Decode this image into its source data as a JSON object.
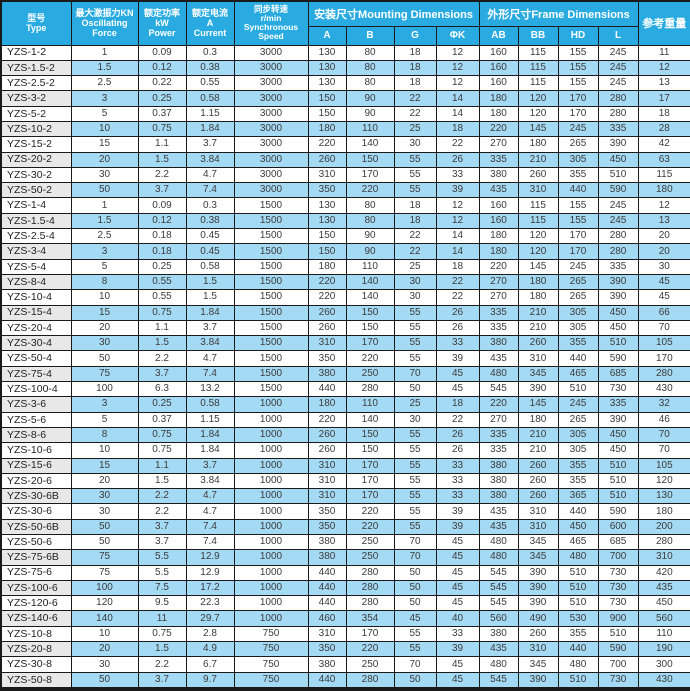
{
  "colors": {
    "header_bg": "#29ABE2",
    "row_stripe": "#A5DAF4",
    "model_stripe": "#E8E8E8",
    "border": "#1A1A1A",
    "header_text": "#FFFFFF",
    "cell_text": "#3C3C3C"
  },
  "table": {
    "header": {
      "type": "型号\nType",
      "force": "最大激振力KN\nOscillating\nForce",
      "power": "额定功率\nkW\nPower",
      "current": "额定电流\nA\nCurrent",
      "speed": "同步转速\nr/min\nSynchronous\nSpeed",
      "mounting_group": "安装尺寸Mounting Dimensions",
      "frame_group": "外形尺寸Frame Dimensions",
      "weight": "参考重量",
      "sub_columns": [
        "A",
        "B",
        "G",
        "ΦK",
        "AB",
        "BB",
        "HD",
        "L"
      ]
    },
    "col_keys": [
      "model",
      "force",
      "power",
      "current",
      "speed",
      "a",
      "b",
      "g",
      "phik",
      "ab",
      "bb",
      "hd",
      "l",
      "weight"
    ],
    "rows": [
      [
        "YZS-1-2",
        "1",
        "0.09",
        "0.3",
        "3000",
        "130",
        "80",
        "18",
        "12",
        "160",
        "115",
        "155",
        "245",
        "11"
      ],
      [
        "YZS-1.5-2",
        "1.5",
        "0.12",
        "0.38",
        "3000",
        "130",
        "80",
        "18",
        "12",
        "160",
        "115",
        "155",
        "245",
        "12"
      ],
      [
        "YZS-2.5-2",
        "2.5",
        "0.22",
        "0.55",
        "3000",
        "130",
        "80",
        "18",
        "12",
        "160",
        "115",
        "155",
        "245",
        "13"
      ],
      [
        "YZS-3-2",
        "3",
        "0.25",
        "0.58",
        "3000",
        "150",
        "90",
        "22",
        "14",
        "180",
        "120",
        "170",
        "280",
        "17"
      ],
      [
        "YZS-5-2",
        "5",
        "0.37",
        "1.15",
        "3000",
        "150",
        "90",
        "22",
        "14",
        "180",
        "120",
        "170",
        "280",
        "18"
      ],
      [
        "YZS-10-2",
        "10",
        "0.75",
        "1.84",
        "3000",
        "180",
        "110",
        "25",
        "18",
        "220",
        "145",
        "245",
        "335",
        "28"
      ],
      [
        "YZS-15-2",
        "15",
        "1.1",
        "3.7",
        "3000",
        "220",
        "140",
        "30",
        "22",
        "270",
        "180",
        "265",
        "390",
        "42"
      ],
      [
        "YZS-20-2",
        "20",
        "1.5",
        "3.84",
        "3000",
        "260",
        "150",
        "55",
        "26",
        "335",
        "210",
        "305",
        "450",
        "63"
      ],
      [
        "YZS-30-2",
        "30",
        "2.2",
        "4.7",
        "3000",
        "310",
        "170",
        "55",
        "33",
        "380",
        "260",
        "355",
        "510",
        "115"
      ],
      [
        "YZS-50-2",
        "50",
        "3.7",
        "7.4",
        "3000",
        "350",
        "220",
        "55",
        "39",
        "435",
        "310",
        "440",
        "590",
        "180"
      ],
      [
        "YZS-1-4",
        "1",
        "0.09",
        "0.3",
        "1500",
        "130",
        "80",
        "18",
        "12",
        "160",
        "115",
        "155",
        "245",
        "12"
      ],
      [
        "YZS-1.5-4",
        "1.5",
        "0.12",
        "0.38",
        "1500",
        "130",
        "80",
        "18",
        "12",
        "160",
        "115",
        "155",
        "245",
        "13"
      ],
      [
        "YZS-2.5-4",
        "2.5",
        "0.18",
        "0.45",
        "1500",
        "150",
        "90",
        "22",
        "14",
        "180",
        "120",
        "170",
        "280",
        "20"
      ],
      [
        "YZS-3-4",
        "3",
        "0.18",
        "0.45",
        "1500",
        "150",
        "90",
        "22",
        "14",
        "180",
        "120",
        "170",
        "280",
        "20"
      ],
      [
        "YZS-5-4",
        "5",
        "0.25",
        "0.58",
        "1500",
        "180",
        "110",
        "25",
        "18",
        "220",
        "145",
        "245",
        "335",
        "30"
      ],
      [
        "YZS-8-4",
        "8",
        "0.55",
        "1.5",
        "1500",
        "220",
        "140",
        "30",
        "22",
        "270",
        "180",
        "265",
        "390",
        "45"
      ],
      [
        "YZS-10-4",
        "10",
        "0.55",
        "1.5",
        "1500",
        "220",
        "140",
        "30",
        "22",
        "270",
        "180",
        "265",
        "390",
        "45"
      ],
      [
        "YZS-15-4",
        "15",
        "0.75",
        "1.84",
        "1500",
        "260",
        "150",
        "55",
        "26",
        "335",
        "210",
        "305",
        "450",
        "66"
      ],
      [
        "YZS-20-4",
        "20",
        "1.1",
        "3.7",
        "1500",
        "260",
        "150",
        "55",
        "26",
        "335",
        "210",
        "305",
        "450",
        "70"
      ],
      [
        "YZS-30-4",
        "30",
        "1.5",
        "3.84",
        "1500",
        "310",
        "170",
        "55",
        "33",
        "380",
        "260",
        "355",
        "510",
        "105"
      ],
      [
        "YZS-50-4",
        "50",
        "2.2",
        "4.7",
        "1500",
        "350",
        "220",
        "55",
        "39",
        "435",
        "310",
        "440",
        "590",
        "170"
      ],
      [
        "YZS-75-4",
        "75",
        "3.7",
        "7.4",
        "1500",
        "380",
        "250",
        "70",
        "45",
        "480",
        "345",
        "465",
        "685",
        "280"
      ],
      [
        "YZS-100-4",
        "100",
        "6.3",
        "13.2",
        "1500",
        "440",
        "280",
        "50",
        "45",
        "545",
        "390",
        "510",
        "730",
        "430"
      ],
      [
        "YZS-3-6",
        "3",
        "0.25",
        "0.58",
        "1000",
        "180",
        "110",
        "25",
        "18",
        "220",
        "145",
        "245",
        "335",
        "32"
      ],
      [
        "YZS-5-6",
        "5",
        "0.37",
        "1.15",
        "1000",
        "220",
        "140",
        "30",
        "22",
        "270",
        "180",
        "265",
        "390",
        "46"
      ],
      [
        "YZS-8-6",
        "8",
        "0.75",
        "1.84",
        "1000",
        "260",
        "150",
        "55",
        "26",
        "335",
        "210",
        "305",
        "450",
        "70"
      ],
      [
        "YZS-10-6",
        "10",
        "0.75",
        "1.84",
        "1000",
        "260",
        "150",
        "55",
        "26",
        "335",
        "210",
        "305",
        "450",
        "70"
      ],
      [
        "YZS-15-6",
        "15",
        "1.1",
        "3.7",
        "1000",
        "310",
        "170",
        "55",
        "33",
        "380",
        "260",
        "355",
        "510",
        "105"
      ],
      [
        "YZS-20-6",
        "20",
        "1.5",
        "3.84",
        "1000",
        "310",
        "170",
        "55",
        "33",
        "380",
        "260",
        "355",
        "510",
        "120"
      ],
      [
        "YZS-30-6B",
        "30",
        "2.2",
        "4.7",
        "1000",
        "310",
        "170",
        "55",
        "33",
        "380",
        "260",
        "365",
        "510",
        "130"
      ],
      [
        "YZS-30-6",
        "30",
        "2.2",
        "4.7",
        "1000",
        "350",
        "220",
        "55",
        "39",
        "435",
        "310",
        "440",
        "590",
        "180"
      ],
      [
        "YZS-50-6B",
        "50",
        "3.7",
        "7.4",
        "1000",
        "350",
        "220",
        "55",
        "39",
        "435",
        "310",
        "450",
        "600",
        "200"
      ],
      [
        "YZS-50-6",
        "50",
        "3.7",
        "7.4",
        "1000",
        "380",
        "250",
        "70",
        "45",
        "480",
        "345",
        "465",
        "685",
        "280"
      ],
      [
        "YZS-75-6B",
        "75",
        "5.5",
        "12.9",
        "1000",
        "380",
        "250",
        "70",
        "45",
        "480",
        "345",
        "480",
        "700",
        "310"
      ],
      [
        "YZS-75-6",
        "75",
        "5.5",
        "12.9",
        "1000",
        "440",
        "280",
        "50",
        "45",
        "545",
        "390",
        "510",
        "730",
        "420"
      ],
      [
        "YZS-100-6",
        "100",
        "7.5",
        "17.2",
        "1000",
        "440",
        "280",
        "50",
        "45",
        "545",
        "390",
        "510",
        "730",
        "435"
      ],
      [
        "YZS-120-6",
        "120",
        "9.5",
        "22.3",
        "1000",
        "440",
        "280",
        "50",
        "45",
        "545",
        "390",
        "510",
        "730",
        "450"
      ],
      [
        "YZS-140-6",
        "140",
        "11",
        "29.7",
        "1000",
        "460",
        "354",
        "45",
        "40",
        "560",
        "490",
        "530",
        "900",
        "560"
      ],
      [
        "YZS-10-8",
        "10",
        "0.75",
        "2.8",
        "750",
        "310",
        "170",
        "55",
        "33",
        "380",
        "260",
        "355",
        "510",
        "110"
      ],
      [
        "YZS-20-8",
        "20",
        "1.5",
        "4.9",
        "750",
        "350",
        "220",
        "55",
        "39",
        "435",
        "310",
        "440",
        "590",
        "190"
      ],
      [
        "YZS-30-8",
        "30",
        "2.2",
        "6.7",
        "750",
        "380",
        "250",
        "70",
        "45",
        "480",
        "345",
        "480",
        "700",
        "300"
      ],
      [
        "YZS-50-8",
        "50",
        "3.7",
        "9.7",
        "750",
        "440",
        "280",
        "50",
        "45",
        "545",
        "390",
        "510",
        "730",
        "430"
      ]
    ]
  }
}
